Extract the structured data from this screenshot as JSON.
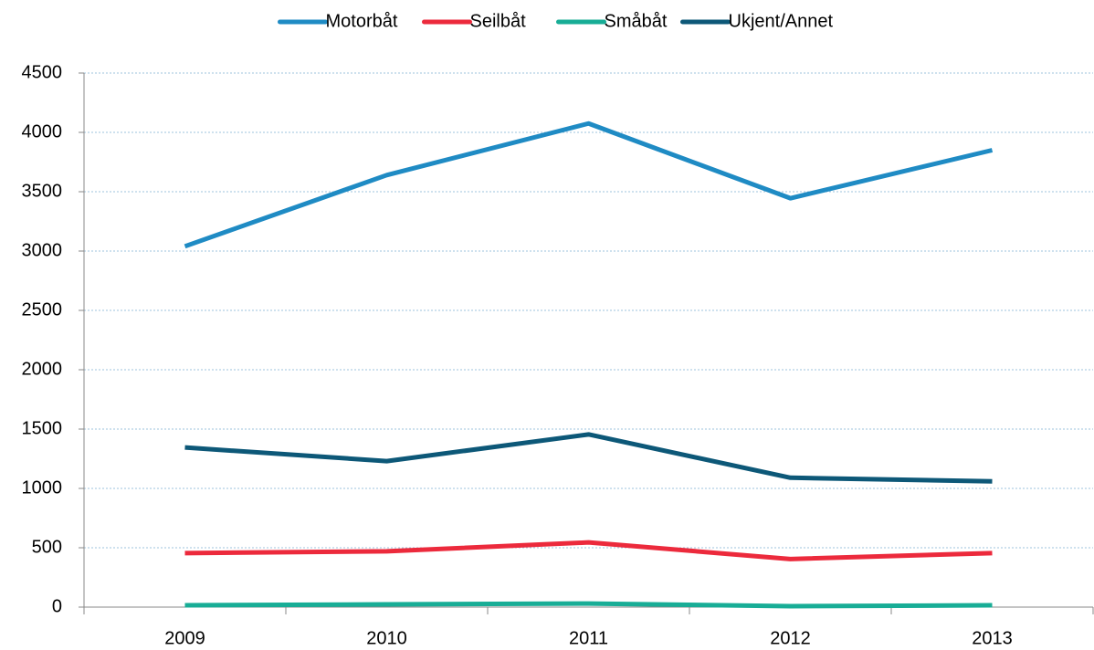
{
  "chart_data": {
    "type": "line",
    "categories": [
      "2009",
      "2010",
      "2011",
      "2012",
      "2013"
    ],
    "series": [
      {
        "name": "Motorbåt",
        "color": "#1f8bc4",
        "values": [
          3040,
          3640,
          4075,
          3445,
          3850
        ]
      },
      {
        "name": "Seilbåt",
        "color": "#ec2a3c",
        "values": [
          455,
          470,
          545,
          405,
          455
        ]
      },
      {
        "name": "Småbåt",
        "color": "#18ad96",
        "values": [
          15,
          23,
          30,
          8,
          15
        ]
      },
      {
        "name": "Ukjent/Annet",
        "color": "#0d5878",
        "values": [
          1345,
          1230,
          1455,
          1090,
          1060
        ]
      }
    ],
    "ylim": [
      0,
      4500
    ],
    "yticks": [
      0,
      500,
      1000,
      1500,
      2000,
      2500,
      3000,
      3500,
      4000,
      4500
    ],
    "grid": true,
    "legend": "top"
  }
}
